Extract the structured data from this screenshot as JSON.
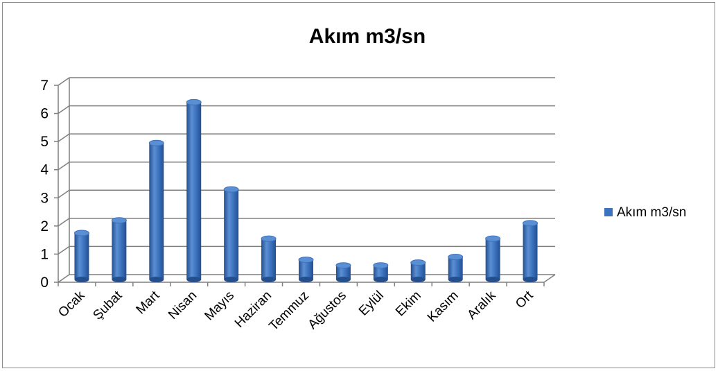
{
  "chart_data": {
    "type": "bar",
    "title": "Akım m3/sn",
    "categories": [
      "Ocak",
      "Şubat",
      "Mart",
      "Nisan",
      "Mayıs",
      "Haziran",
      "Temmuz",
      "Ağustos",
      "Eylül",
      "Ekim",
      "Kasım",
      "Aralık",
      "Ort"
    ],
    "series": [
      {
        "name": "Akım m3/sn",
        "values": [
          1.65,
          2.1,
          4.85,
          6.3,
          3.2,
          1.45,
          0.7,
          0.5,
          0.5,
          0.6,
          0.8,
          1.45,
          2.0
        ]
      }
    ],
    "xlabel": "",
    "ylabel": "",
    "ylim": [
      0,
      7
    ],
    "yticks": [
      "0",
      "1",
      "2",
      "3",
      "4",
      "5",
      "6",
      "7"
    ],
    "grid": true,
    "legend_position": "right",
    "style": "3d-cylinder",
    "colors": {
      "bar_light": "#5b8fd3",
      "bar_mid": "#3c72be",
      "bar_dark": "#244f8f",
      "grid": "#7f7f7f"
    }
  }
}
